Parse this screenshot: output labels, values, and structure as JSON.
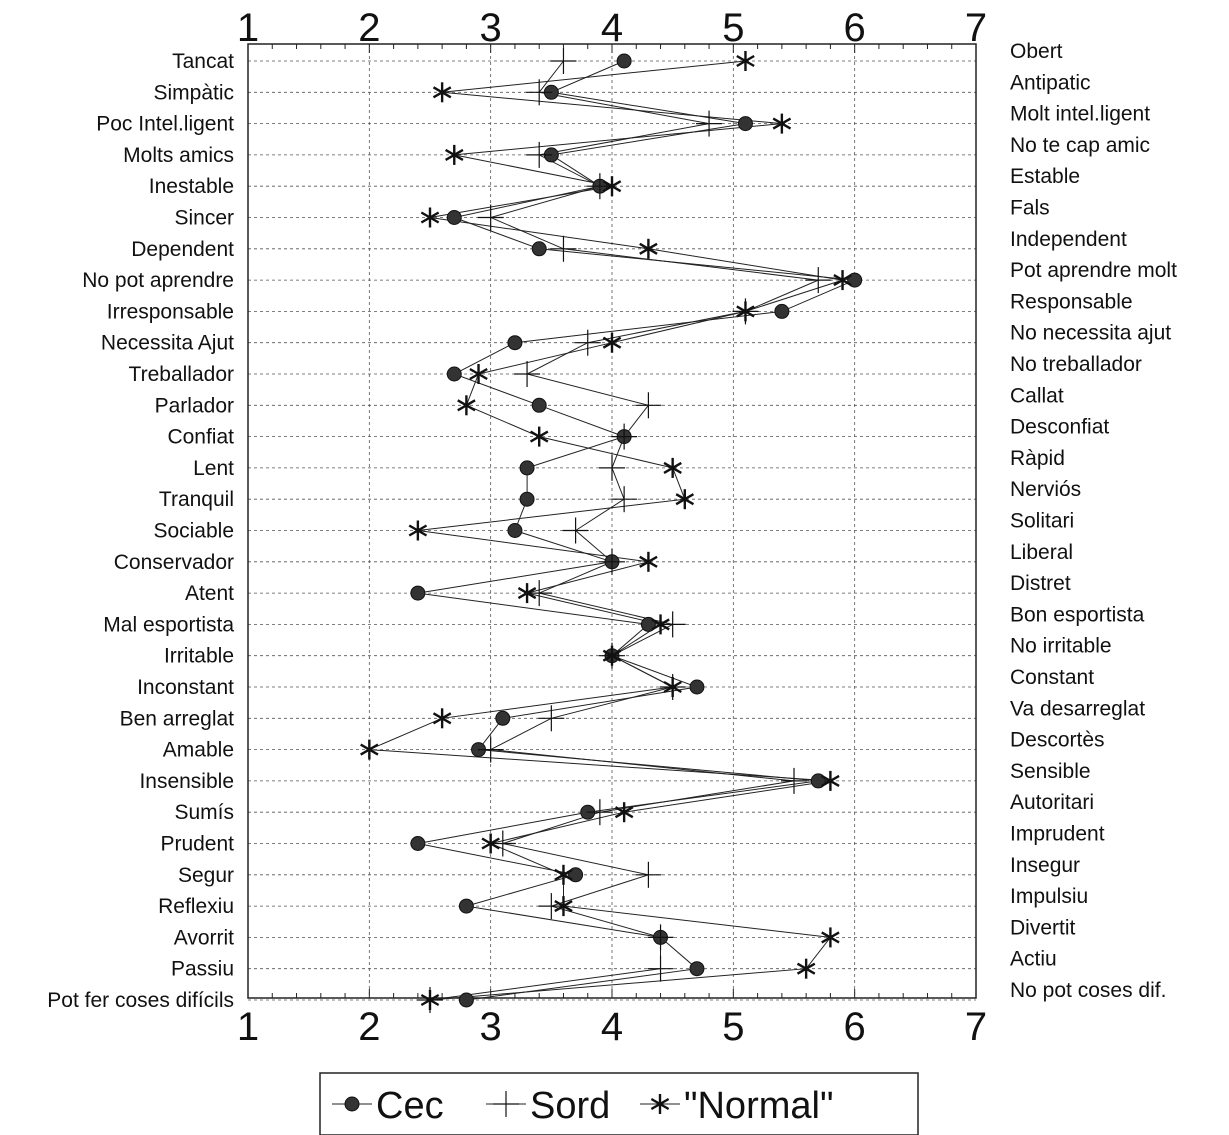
{
  "chart_data": {
    "type": "line",
    "orientation": "horizontal",
    "xlim": [
      1,
      7
    ],
    "x_ticks": [
      "1",
      "2",
      "3",
      "4",
      "5",
      "6",
      "7"
    ],
    "grid": true,
    "legend_position": "bottom-center",
    "left_labels": [
      "Tancat",
      "Simpàtic",
      "Poc Intel.ligent",
      "Molts amics",
      "Inestable",
      "Sincer",
      "Dependent",
      "No pot aprendre",
      "Irresponsable",
      "Necessita Ajut",
      "Treballador",
      "Parlador",
      "Confiat",
      "Lent",
      "Tranquil",
      "Sociable",
      "Conservador",
      "Atent",
      "Mal esportista",
      "Irritable",
      "Inconstant",
      "Ben arreglat",
      "Amable",
      "Insensible",
      "Sumís",
      "Prudent",
      "Segur",
      "Reflexiu",
      "Avorrit",
      "Passiu",
      "Pot fer coses difícils"
    ],
    "right_labels": [
      "Obert",
      "Antipatic",
      "Molt intel.ligent",
      "No te cap amic",
      "Estable",
      "Fals",
      "Independent",
      "Pot aprendre molt",
      "Responsable",
      "No necessita ajut",
      "No treballador",
      "Callat",
      "Desconfiat",
      "Ràpid",
      "Nerviós",
      "Solitari",
      "Liberal",
      "Distret",
      "Bon esportista",
      "No irritable",
      "Constant",
      "Va desarreglat",
      "Descortès",
      "Sensible",
      "Autoritari",
      "Imprudent",
      "Insegur",
      "Impulsiu",
      "Divertit",
      "Actiu",
      "No pot coses dif."
    ],
    "series": [
      {
        "name": "Cec",
        "marker": "circle",
        "values": [
          4.1,
          3.5,
          5.1,
          3.5,
          3.9,
          2.7,
          3.4,
          6.0,
          5.4,
          3.2,
          2.7,
          3.4,
          4.1,
          3.3,
          3.3,
          3.2,
          4.0,
          2.4,
          4.3,
          4.0,
          4.7,
          3.1,
          2.9,
          5.7,
          3.8,
          2.4,
          3.7,
          2.8,
          4.4,
          4.7,
          2.8
        ]
      },
      {
        "name": "Sord",
        "marker": "plus",
        "values": [
          3.6,
          3.4,
          4.8,
          3.4,
          3.9,
          3.0,
          3.6,
          5.7,
          5.1,
          3.8,
          3.3,
          4.3,
          4.1,
          4.0,
          4.1,
          3.7,
          4.0,
          3.4,
          4.5,
          4.0,
          4.5,
          3.5,
          3.0,
          5.5,
          3.9,
          3.1,
          4.3,
          3.5,
          4.4,
          4.4,
          2.5
        ]
      },
      {
        "name": "\"Normal\"",
        "marker": "asterisk",
        "values": [
          5.1,
          2.6,
          5.4,
          2.7,
          4.0,
          2.5,
          4.3,
          5.9,
          5.1,
          4.0,
          2.9,
          2.8,
          3.4,
          4.5,
          4.6,
          2.4,
          4.3,
          3.3,
          4.4,
          4.0,
          4.5,
          2.6,
          2.0,
          5.8,
          4.1,
          3.0,
          3.6,
          3.6,
          5.8,
          5.6,
          2.5
        ]
      }
    ]
  }
}
